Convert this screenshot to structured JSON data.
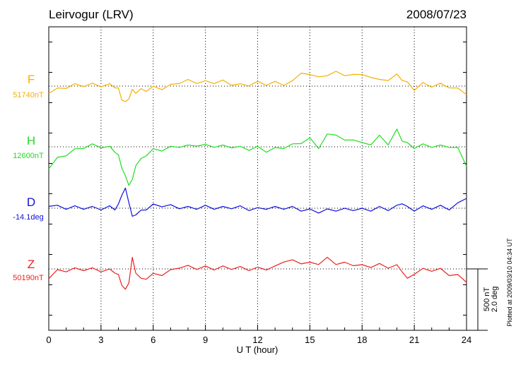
{
  "header": {
    "station": "Leirvogur (LRV)",
    "date": "2008/07/23"
  },
  "side_note": "Plotted at 2009/03/10 04:34 UT",
  "chart_data": {
    "type": "line",
    "xlabel": "U T (hour)",
    "xlim": [
      0,
      24
    ],
    "x_ticks": [
      0,
      3,
      6,
      9,
      12,
      15,
      18,
      21,
      24
    ],
    "x_tick_labels": [
      "0",
      "3",
      "6",
      "9",
      "12",
      "15",
      "18",
      "21",
      "24"
    ],
    "grid": true,
    "scale_bar": {
      "label_1": "500 nT",
      "label_2": "2.0 deg"
    },
    "series": [
      {
        "name": "F",
        "baseline_label": "51740nT",
        "color": "#f5b000",
        "x": [
          0,
          0.5,
          1,
          1.5,
          2,
          2.5,
          3,
          3.5,
          3.8,
          4,
          4.2,
          4.4,
          4.6,
          4.8,
          5,
          5.3,
          5.6,
          6,
          6.5,
          7,
          7.5,
          8,
          8.5,
          9,
          9.5,
          10,
          10.5,
          11,
          11.5,
          12,
          12.5,
          13,
          13.5,
          14,
          14.5,
          15,
          15.5,
          16,
          16.5,
          17,
          17.5,
          18,
          18.5,
          19,
          19.5,
          20,
          20.3,
          20.6,
          21,
          21.5,
          22,
          22.5,
          23,
          23.5,
          24
        ],
        "y": [
          -60,
          -30,
          -5,
          5,
          10,
          10,
          8,
          5,
          0,
          -30,
          -100,
          -140,
          -90,
          -40,
          -45,
          -35,
          -30,
          -15,
          -15,
          0,
          35,
          40,
          35,
          30,
          35,
          35,
          20,
          5,
          15,
          25,
          20,
          25,
          20,
          30,
          120,
          80,
          90,
          70,
          135,
          70,
          110,
          80,
          85,
          40,
          60,
          85,
          60,
          20,
          -20,
          15,
          5,
          10,
          0,
          -30,
          -70
        ]
      },
      {
        "name": "H",
        "baseline_label": "12600nT",
        "color": "#22dd22",
        "x": [
          0,
          0.5,
          1,
          1.5,
          2,
          2.5,
          3,
          3.5,
          3.8,
          4,
          4.2,
          4.4,
          4.6,
          4.8,
          5,
          5.3,
          5.6,
          6,
          6.5,
          7,
          7.5,
          8,
          8.5,
          9,
          9.5,
          10,
          10.5,
          11,
          11.5,
          12,
          12.5,
          13,
          13.5,
          14,
          14.5,
          15,
          15.5,
          16,
          16.5,
          17,
          17.5,
          18,
          18.5,
          19,
          19.5,
          20,
          20.3,
          20.6,
          21,
          21.5,
          22,
          22.5,
          23,
          23.5,
          24
        ],
        "y": [
          -180,
          -100,
          -60,
          -30,
          0,
          10,
          5,
          -10,
          -30,
          -80,
          -160,
          -250,
          -300,
          -280,
          -140,
          -110,
          -60,
          -30,
          -20,
          -10,
          10,
          0,
          20,
          5,
          10,
          0,
          5,
          -10,
          -15,
          -10,
          -30,
          -20,
          0,
          10,
          40,
          60,
          0,
          90,
          110,
          40,
          70,
          20,
          30,
          80,
          30,
          130,
          60,
          20,
          0,
          10,
          10,
          0,
          10,
          -20,
          -160
        ]
      },
      {
        "name": "D",
        "baseline_label": "-14.1deg",
        "color": "#1010dd",
        "x": [
          0,
          0.5,
          1,
          1.5,
          2,
          2.5,
          3,
          3.5,
          3.8,
          4,
          4.2,
          4.4,
          4.6,
          4.8,
          5,
          5.3,
          5.6,
          6,
          6.5,
          7,
          7.5,
          8,
          8.5,
          9,
          9.5,
          10,
          10.5,
          11,
          11.5,
          12,
          12.5,
          13,
          13.5,
          14,
          14.5,
          15,
          15.5,
          16,
          16.5,
          17,
          17.5,
          18,
          18.5,
          19,
          19.5,
          20,
          20.3,
          20.6,
          21,
          21.5,
          22,
          22.5,
          23,
          23.5,
          24
        ],
        "y": [
          15,
          10,
          5,
          5,
          5,
          0,
          0,
          5,
          0,
          20,
          120,
          150,
          60,
          -80,
          -40,
          -30,
          0,
          20,
          25,
          15,
          10,
          0,
          5,
          10,
          5,
          0,
          10,
          5,
          -5,
          -10,
          5,
          0,
          5,
          0,
          -10,
          -20,
          -25,
          -20,
          -10,
          -15,
          -5,
          -15,
          -10,
          0,
          -5,
          10,
          50,
          0,
          -10,
          5,
          5,
          10,
          0,
          30,
          80
        ]
      },
      {
        "name": "Z",
        "baseline_label": "50190nT",
        "color": "#ee2020",
        "x": [
          0,
          0.5,
          1,
          1.5,
          2,
          2.5,
          3,
          3.5,
          3.8,
          4,
          4.2,
          4.4,
          4.6,
          4.8,
          5,
          5.3,
          5.6,
          6,
          6.5,
          7,
          7.5,
          8,
          8.5,
          9,
          9.5,
          10,
          10.5,
          11,
          11.5,
          12,
          12.5,
          13,
          13.5,
          14,
          14.5,
          15,
          15.5,
          16,
          16.5,
          17,
          17.5,
          18,
          18.5,
          19,
          19.5,
          20,
          20.3,
          20.6,
          21,
          21.5,
          22,
          22.5,
          23,
          23.5,
          24
        ],
        "y": [
          -80,
          -20,
          -10,
          -5,
          0,
          -5,
          -10,
          -15,
          -20,
          -60,
          -120,
          -180,
          -100,
          80,
          -20,
          -90,
          -70,
          -50,
          -40,
          -20,
          20,
          15,
          10,
          10,
          5,
          10,
          10,
          5,
          0,
          0,
          5,
          10,
          70,
          60,
          55,
          40,
          50,
          80,
          50,
          40,
          40,
          20,
          25,
          30,
          20,
          20,
          -10,
          -90,
          -30,
          -10,
          -5,
          -10,
          -40,
          -60,
          -110
        ]
      }
    ]
  }
}
